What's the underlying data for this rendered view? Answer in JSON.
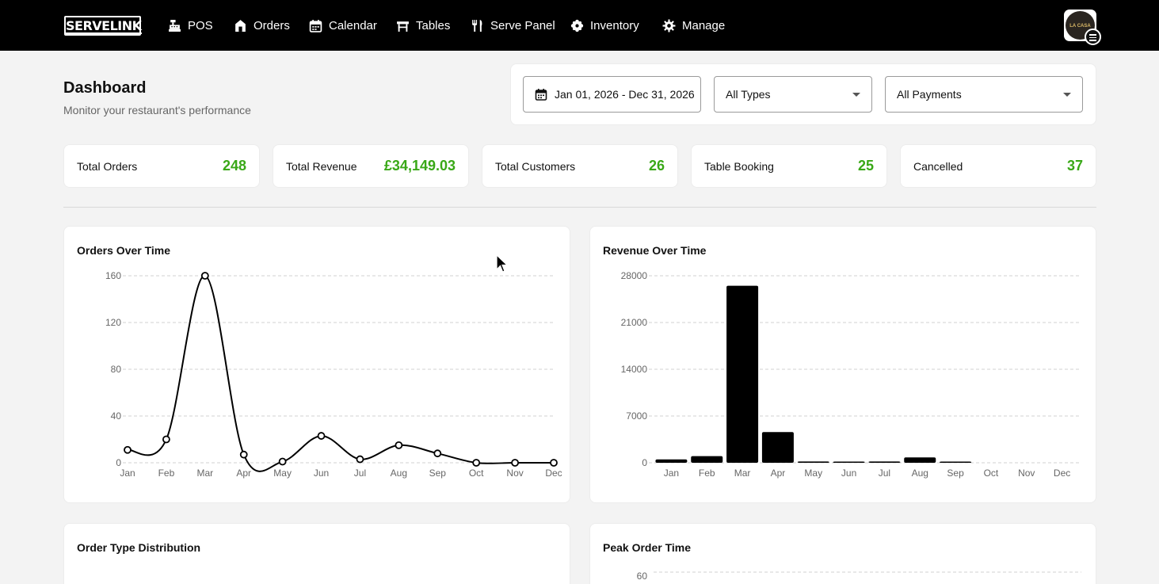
{
  "app": {
    "logo": "SERVELINK"
  },
  "nav": [
    {
      "label": "POS",
      "icon": "cash-register-icon"
    },
    {
      "label": "Orders",
      "icon": "store-icon"
    },
    {
      "label": "Calendar",
      "icon": "calendar-icon"
    },
    {
      "label": "Tables",
      "icon": "table-icon"
    },
    {
      "label": "Serve Panel",
      "icon": "utensils-icon"
    },
    {
      "label": "Inventory",
      "icon": "cogs-icon"
    },
    {
      "label": "Manage",
      "icon": "gear-icon"
    }
  ],
  "user": {
    "avatar_text": "LA CASA",
    "menu_icon": "hamburger-menu-icon"
  },
  "page": {
    "title": "Dashboard",
    "subtitle": "Monitor your restaurant's performance"
  },
  "filters": {
    "date_range": "Jan 01, 2026 - Dec 31, 2026",
    "type_select": "All Types",
    "payment_select": "All Payments"
  },
  "stats": [
    {
      "label": "Total Orders",
      "value": "248"
    },
    {
      "label": "Total Revenue",
      "value": "£34,149.03"
    },
    {
      "label": "Total Customers",
      "value": "26"
    },
    {
      "label": "Table Booking",
      "value": "25"
    },
    {
      "label": "Cancelled",
      "value": "37"
    }
  ],
  "colors": {
    "topbar": "#000000",
    "accent_green": "#39a817",
    "chart_ink": "#000000"
  },
  "cards": {
    "orders": "Orders Over Time",
    "revenue": "Revenue Over Time",
    "order_type": "Order Type Distribution",
    "peak": "Peak Order Time"
  },
  "chart_data": [
    {
      "type": "line",
      "title": "Orders Over Time",
      "categories": [
        "Jan",
        "Feb",
        "Mar",
        "Apr",
        "May",
        "Jun",
        "Jul",
        "Aug",
        "Sep",
        "Oct",
        "Nov",
        "Dec"
      ],
      "values": [
        11,
        20,
        160,
        7,
        1,
        23,
        3,
        15,
        8,
        0,
        0,
        0
      ],
      "yticks": [
        0,
        40,
        80,
        120,
        160
      ],
      "ylim": [
        0,
        160
      ],
      "grid": true
    },
    {
      "type": "bar",
      "title": "Revenue Over Time",
      "categories": [
        "Jan",
        "Feb",
        "Mar",
        "Apr",
        "May",
        "Jun",
        "Jul",
        "Aug",
        "Sep",
        "Oct",
        "Nov",
        "Dec"
      ],
      "values": [
        500,
        1000,
        26500,
        4600,
        200,
        80,
        200,
        800,
        60,
        0,
        0,
        0
      ],
      "yticks": [
        0,
        7000,
        14000,
        21000,
        28000
      ],
      "ylim": [
        0,
        28000
      ],
      "grid": true
    },
    {
      "type": "bar",
      "title": "Peak Order Time",
      "yticks": [
        60
      ],
      "grid": true
    }
  ]
}
